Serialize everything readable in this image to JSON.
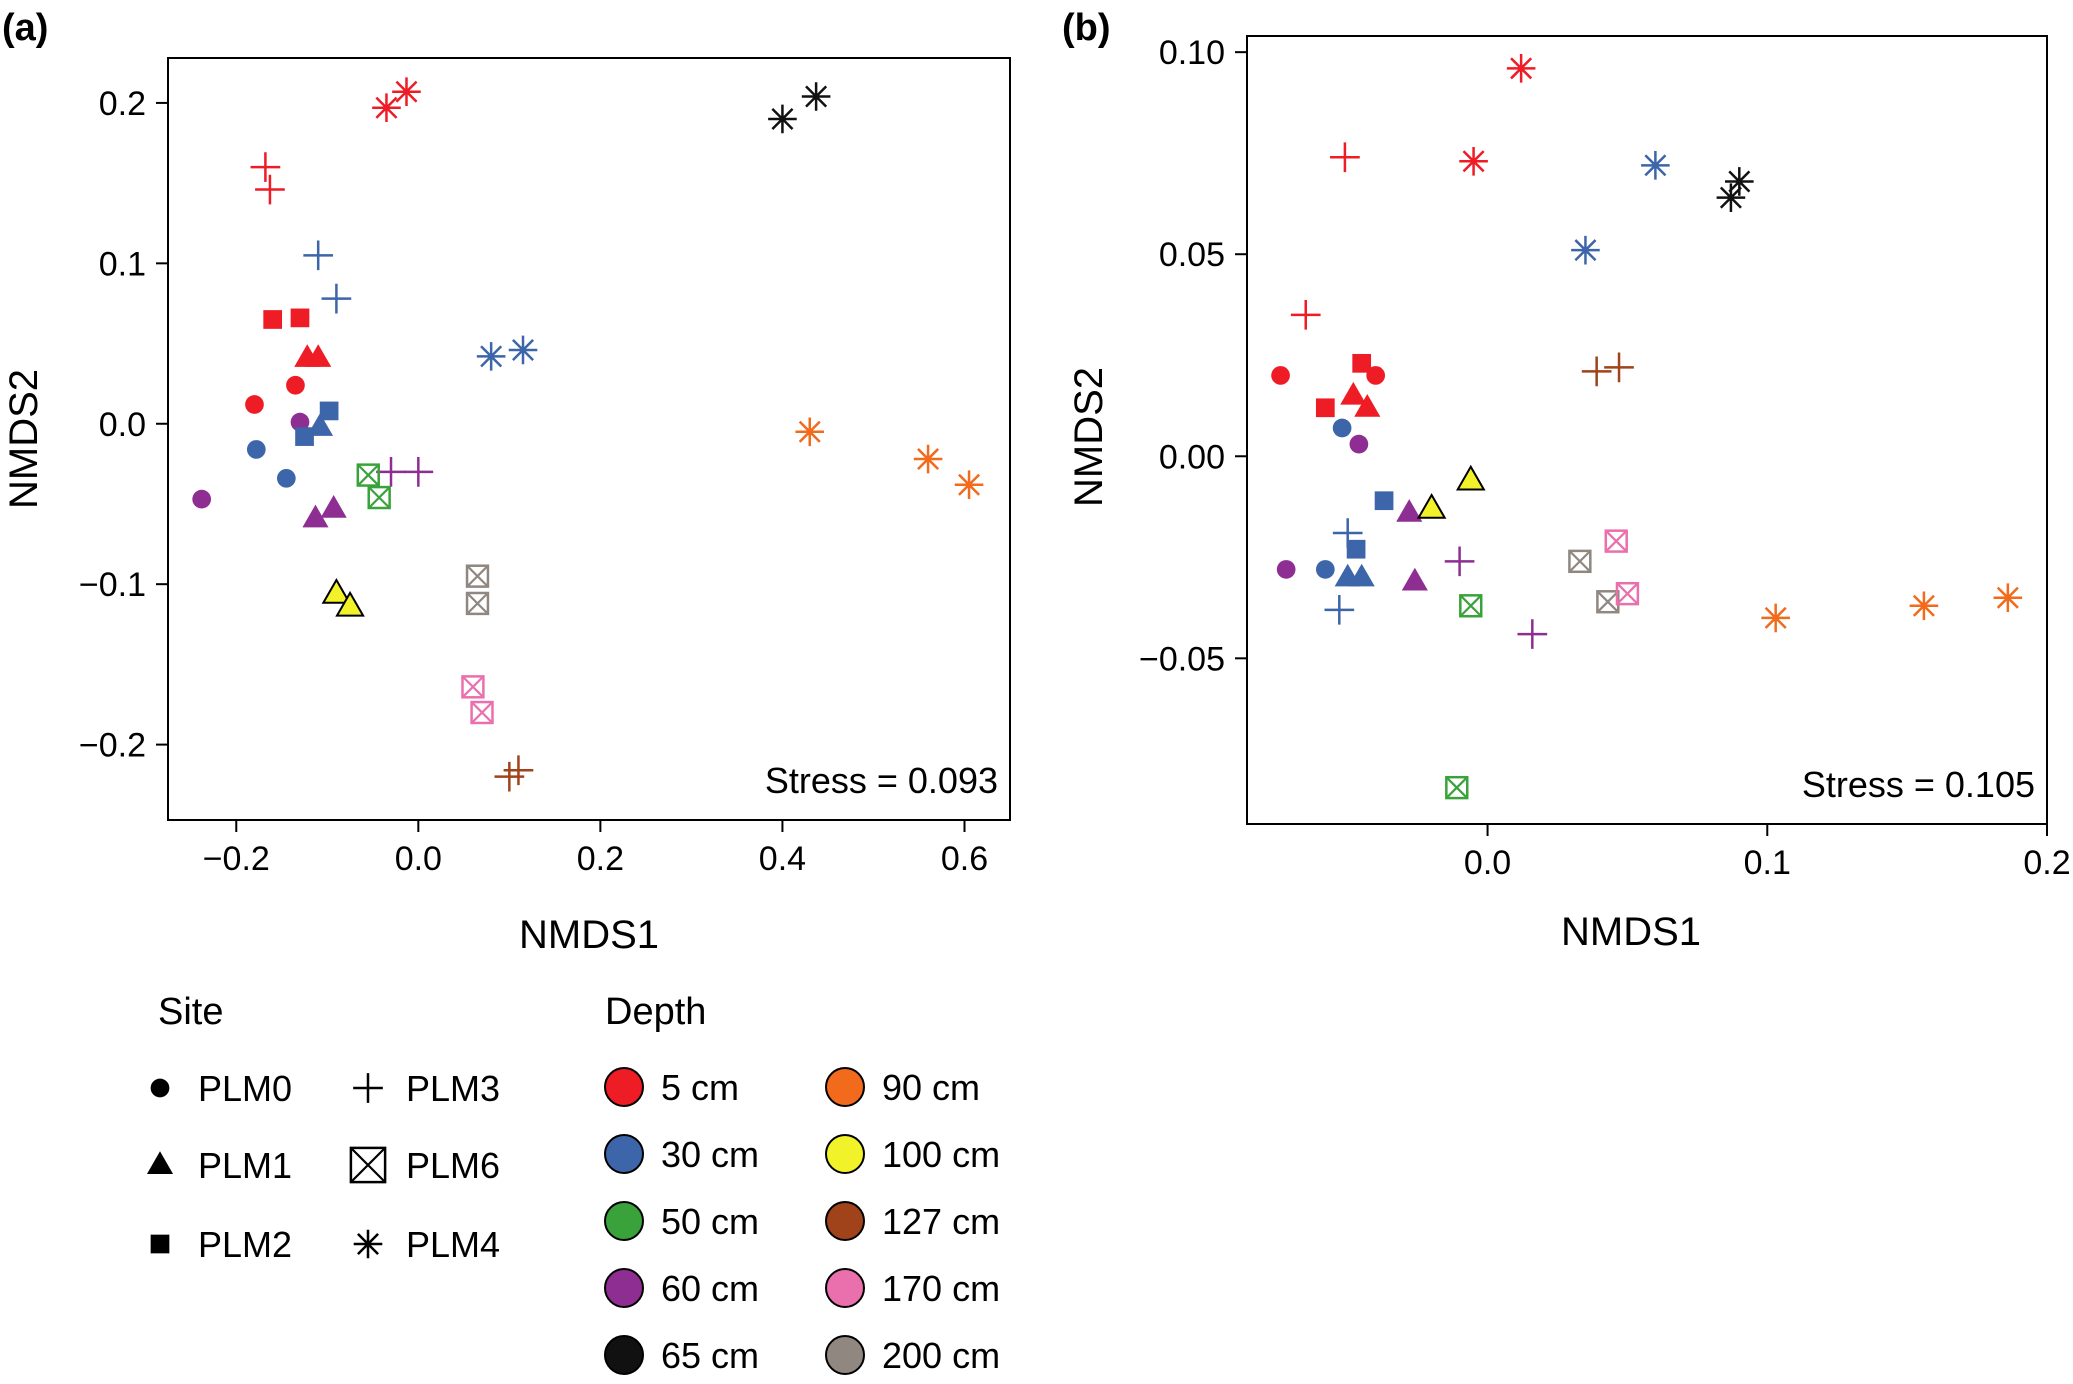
{
  "legend": {
    "site_title": "Site",
    "depth_title": "Depth",
    "sites": [
      {
        "label": "PLM0",
        "shape": "circle"
      },
      {
        "label": "PLM1",
        "shape": "triangle"
      },
      {
        "label": "PLM2",
        "shape": "square"
      },
      {
        "label": "PLM3",
        "shape": "plus"
      },
      {
        "label": "PLM6",
        "shape": "boxx"
      },
      {
        "label": "PLM4",
        "shape": "star"
      }
    ],
    "depths": [
      {
        "label": "5 cm",
        "color": "#ee1c25"
      },
      {
        "label": "30 cm",
        "color": "#3d65a9"
      },
      {
        "label": "50 cm",
        "color": "#3aa23a"
      },
      {
        "label": "60 cm",
        "color": "#8e2e92"
      },
      {
        "label": "65 cm",
        "color": "#111111"
      },
      {
        "label": "90 cm",
        "color": "#f26a1b"
      },
      {
        "label": "100 cm",
        "color": "#f2f22a"
      },
      {
        "label": "127 cm",
        "color": "#a0421a"
      },
      {
        "label": "170 cm",
        "color": "#ea6fad"
      },
      {
        "label": "200 cm",
        "color": "#8f8780"
      }
    ]
  },
  "chart_data": [
    {
      "type": "scatter",
      "panel_label": "(a)",
      "xlabel": "NMDS1",
      "ylabel": "NMDS2",
      "xlim": [
        -0.275,
        0.65
      ],
      "ylim": [
        -0.247,
        0.228
      ],
      "xticks": [
        -0.2,
        0.0,
        0.2,
        0.4,
        0.6
      ],
      "xtick_labels": [
        "−0.2",
        "0.0",
        "0.2",
        "0.4",
        "0.6"
      ],
      "yticks": [
        -0.2,
        -0.1,
        0.0,
        0.1,
        0.2
      ],
      "ytick_labels": [
        "−0.2",
        "−0.1",
        "0.0",
        "0.1",
        "0.2"
      ],
      "stress": "Stress = 0.093",
      "points": [
        {
          "x": -0.18,
          "y": 0.012,
          "site": "PLM0",
          "depth": "5 cm"
        },
        {
          "x": -0.135,
          "y": 0.024,
          "site": "PLM0",
          "depth": "5 cm"
        },
        {
          "x": -0.178,
          "y": -0.016,
          "site": "PLM0",
          "depth": "30 cm"
        },
        {
          "x": -0.145,
          "y": -0.034,
          "site": "PLM0",
          "depth": "30 cm"
        },
        {
          "x": -0.13,
          "y": 0.001,
          "site": "PLM0",
          "depth": "60 cm"
        },
        {
          "x": -0.238,
          "y": -0.047,
          "site": "PLM0",
          "depth": "60 cm"
        },
        {
          "x": -0.122,
          "y": 0.041,
          "site": "PLM1",
          "depth": "5 cm"
        },
        {
          "x": -0.11,
          "y": 0.041,
          "site": "PLM1",
          "depth": "5 cm"
        },
        {
          "x": -0.108,
          "y": -0.002,
          "site": "PLM1",
          "depth": "30 cm"
        },
        {
          "x": -0.113,
          "y": -0.059,
          "site": "PLM1",
          "depth": "60 cm"
        },
        {
          "x": -0.093,
          "y": -0.053,
          "site": "PLM1",
          "depth": "60 cm"
        },
        {
          "x": -0.09,
          "y": -0.106,
          "site": "PLM1",
          "depth": "100 cm"
        },
        {
          "x": -0.075,
          "y": -0.114,
          "site": "PLM1",
          "depth": "100 cm"
        },
        {
          "x": -0.16,
          "y": 0.065,
          "site": "PLM2",
          "depth": "5 cm"
        },
        {
          "x": -0.13,
          "y": 0.066,
          "site": "PLM2",
          "depth": "5 cm"
        },
        {
          "x": -0.098,
          "y": 0.008,
          "site": "PLM2",
          "depth": "30 cm"
        },
        {
          "x": -0.125,
          "y": -0.008,
          "site": "PLM2",
          "depth": "30 cm"
        },
        {
          "x": -0.168,
          "y": 0.16,
          "site": "PLM3",
          "depth": "5 cm"
        },
        {
          "x": -0.163,
          "y": 0.146,
          "site": "PLM3",
          "depth": "5 cm"
        },
        {
          "x": -0.11,
          "y": 0.105,
          "site": "PLM3",
          "depth": "30 cm"
        },
        {
          "x": -0.09,
          "y": 0.078,
          "site": "PLM3",
          "depth": "30 cm"
        },
        {
          "x": -0.03,
          "y": -0.03,
          "site": "PLM3",
          "depth": "60 cm"
        },
        {
          "x": 0.0,
          "y": -0.03,
          "site": "PLM3",
          "depth": "60 cm"
        },
        {
          "x": 0.1,
          "y": -0.22,
          "site": "PLM3",
          "depth": "127 cm"
        },
        {
          "x": 0.11,
          "y": -0.216,
          "site": "PLM3",
          "depth": "127 cm"
        },
        {
          "x": -0.055,
          "y": -0.032,
          "site": "PLM6",
          "depth": "50 cm"
        },
        {
          "x": -0.043,
          "y": -0.046,
          "site": "PLM6",
          "depth": "50 cm"
        },
        {
          "x": 0.065,
          "y": -0.095,
          "site": "PLM6",
          "depth": "200 cm"
        },
        {
          "x": 0.065,
          "y": -0.112,
          "site": "PLM6",
          "depth": "200 cm"
        },
        {
          "x": 0.06,
          "y": -0.164,
          "site": "PLM6",
          "depth": "170 cm"
        },
        {
          "x": 0.07,
          "y": -0.18,
          "site": "PLM6",
          "depth": "170 cm"
        },
        {
          "x": -0.035,
          "y": 0.197,
          "site": "PLM4",
          "depth": "5 cm"
        },
        {
          "x": -0.013,
          "y": 0.207,
          "site": "PLM4",
          "depth": "5 cm"
        },
        {
          "x": 0.08,
          "y": 0.042,
          "site": "PLM4",
          "depth": "30 cm"
        },
        {
          "x": 0.115,
          "y": 0.046,
          "site": "PLM4",
          "depth": "30 cm"
        },
        {
          "x": 0.4,
          "y": 0.19,
          "site": "PLM4",
          "depth": "65 cm"
        },
        {
          "x": 0.437,
          "y": 0.204,
          "site": "PLM4",
          "depth": "65 cm"
        },
        {
          "x": 0.43,
          "y": -0.005,
          "site": "PLM4",
          "depth": "90 cm"
        },
        {
          "x": 0.56,
          "y": -0.022,
          "site": "PLM4",
          "depth": "90 cm"
        },
        {
          "x": 0.605,
          "y": -0.038,
          "site": "PLM4",
          "depth": "90 cm"
        }
      ]
    },
    {
      "type": "scatter",
      "panel_label": "(b)",
      "xlabel": "NMDS1",
      "ylabel": "NMDS2",
      "xlim": [
        -0.086,
        0.2
      ],
      "ylim": [
        -0.091,
        0.104
      ],
      "xticks": [
        0.0,
        0.1,
        0.2
      ],
      "xtick_labels": [
        "0.0",
        "0.1",
        "0.2"
      ],
      "yticks": [
        -0.05,
        0.0,
        0.05,
        0.1
      ],
      "ytick_labels": [
        "−0.05",
        "0.00",
        "0.05",
        "0.10"
      ],
      "stress": "Stress = 0.105",
      "points": [
        {
          "x": -0.074,
          "y": 0.02,
          "site": "PLM0",
          "depth": "5 cm"
        },
        {
          "x": -0.04,
          "y": 0.02,
          "site": "PLM0",
          "depth": "5 cm"
        },
        {
          "x": -0.052,
          "y": 0.007,
          "site": "PLM0",
          "depth": "30 cm"
        },
        {
          "x": -0.058,
          "y": -0.028,
          "site": "PLM0",
          "depth": "30 cm"
        },
        {
          "x": -0.046,
          "y": 0.003,
          "site": "PLM0",
          "depth": "60 cm"
        },
        {
          "x": -0.072,
          "y": -0.028,
          "site": "PLM0",
          "depth": "60 cm"
        },
        {
          "x": -0.048,
          "y": 0.015,
          "site": "PLM1",
          "depth": "5 cm"
        },
        {
          "x": -0.043,
          "y": 0.012,
          "site": "PLM1",
          "depth": "5 cm"
        },
        {
          "x": -0.05,
          "y": -0.03,
          "site": "PLM1",
          "depth": "30 cm"
        },
        {
          "x": -0.045,
          "y": -0.03,
          "site": "PLM1",
          "depth": "30 cm"
        },
        {
          "x": -0.028,
          "y": -0.014,
          "site": "PLM1",
          "depth": "60 cm"
        },
        {
          "x": -0.026,
          "y": -0.031,
          "site": "PLM1",
          "depth": "60 cm"
        },
        {
          "x": -0.02,
          "y": -0.013,
          "site": "PLM1",
          "depth": "100 cm"
        },
        {
          "x": -0.006,
          "y": -0.006,
          "site": "PLM1",
          "depth": "100 cm"
        },
        {
          "x": -0.045,
          "y": 0.023,
          "site": "PLM2",
          "depth": "5 cm"
        },
        {
          "x": -0.058,
          "y": 0.012,
          "site": "PLM2",
          "depth": "5 cm"
        },
        {
          "x": -0.037,
          "y": -0.011,
          "site": "PLM2",
          "depth": "30 cm"
        },
        {
          "x": -0.047,
          "y": -0.023,
          "site": "PLM2",
          "depth": "30 cm"
        },
        {
          "x": -0.065,
          "y": 0.035,
          "site": "PLM3",
          "depth": "5 cm"
        },
        {
          "x": -0.051,
          "y": 0.074,
          "site": "PLM3",
          "depth": "5 cm"
        },
        {
          "x": -0.05,
          "y": -0.019,
          "site": "PLM3",
          "depth": "30 cm"
        },
        {
          "x": -0.053,
          "y": -0.038,
          "site": "PLM3",
          "depth": "30 cm"
        },
        {
          "x": -0.01,
          "y": -0.026,
          "site": "PLM3",
          "depth": "60 cm"
        },
        {
          "x": 0.016,
          "y": -0.044,
          "site": "PLM3",
          "depth": "60 cm"
        },
        {
          "x": 0.039,
          "y": 0.021,
          "site": "PLM3",
          "depth": "127 cm"
        },
        {
          "x": 0.047,
          "y": 0.022,
          "site": "PLM3",
          "depth": "127 cm"
        },
        {
          "x": -0.006,
          "y": -0.037,
          "site": "PLM6",
          "depth": "50 cm"
        },
        {
          "x": -0.011,
          "y": -0.082,
          "site": "PLM6",
          "depth": "50 cm"
        },
        {
          "x": 0.033,
          "y": -0.026,
          "site": "PLM6",
          "depth": "200 cm"
        },
        {
          "x": 0.043,
          "y": -0.036,
          "site": "PLM6",
          "depth": "200 cm"
        },
        {
          "x": 0.046,
          "y": -0.021,
          "site": "PLM6",
          "depth": "170 cm"
        },
        {
          "x": 0.05,
          "y": -0.034,
          "site": "PLM6",
          "depth": "170 cm"
        },
        {
          "x": -0.005,
          "y": 0.073,
          "site": "PLM4",
          "depth": "5 cm"
        },
        {
          "x": 0.012,
          "y": 0.096,
          "site": "PLM4",
          "depth": "5 cm"
        },
        {
          "x": 0.035,
          "y": 0.051,
          "site": "PLM4",
          "depth": "30 cm"
        },
        {
          "x": 0.06,
          "y": 0.072,
          "site": "PLM4",
          "depth": "30 cm"
        },
        {
          "x": 0.087,
          "y": 0.064,
          "site": "PLM4",
          "depth": "65 cm"
        },
        {
          "x": 0.09,
          "y": 0.068,
          "site": "PLM4",
          "depth": "65 cm"
        },
        {
          "x": 0.103,
          "y": -0.04,
          "site": "PLM4",
          "depth": "90 cm"
        },
        {
          "x": 0.156,
          "y": -0.037,
          "site": "PLM4",
          "depth": "90 cm"
        },
        {
          "x": 0.186,
          "y": -0.035,
          "site": "PLM4",
          "depth": "90 cm"
        }
      ]
    }
  ]
}
